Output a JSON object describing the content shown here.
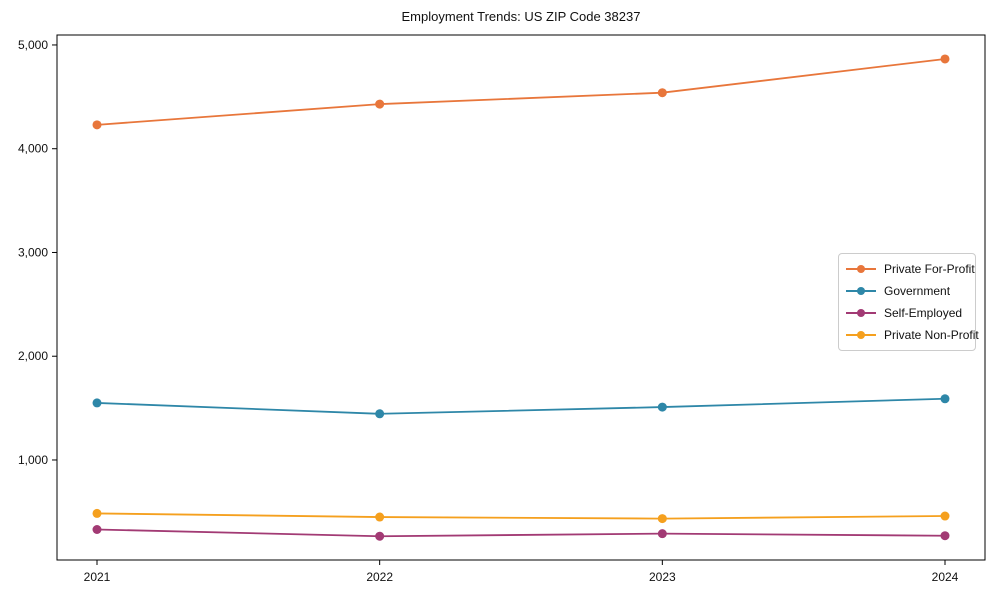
{
  "title": "Employment Trends: US ZIP Code 38237",
  "chart_data": {
    "type": "line",
    "title": "Employment Trends: US ZIP Code 38237",
    "xlabel": "",
    "ylabel": "",
    "x": [
      2021,
      2022,
      2023,
      2024
    ],
    "x_tick_labels": [
      "2021",
      "2022",
      "2023",
      "2024"
    ],
    "y_ticks": [
      1000,
      2000,
      3000,
      4000,
      5000
    ],
    "y_tick_labels": [
      "1,000",
      "2,000",
      "3,000",
      "4,000",
      "5,000"
    ],
    "ylim": [
      36,
      5096
    ],
    "grid": false,
    "legend_position": "center-right",
    "series": [
      {
        "name": "Private For-Profit",
        "color": "#E8763B",
        "values": [
          4230,
          4430,
          4540,
          4865
        ]
      },
      {
        "name": "Government",
        "color": "#2E87A8",
        "values": [
          1550,
          1445,
          1510,
          1590
        ]
      },
      {
        "name": "Self-Employed",
        "color": "#A23A74",
        "values": [
          330,
          265,
          290,
          270
        ]
      },
      {
        "name": "Private Non-Profit",
        "color": "#F5A01E",
        "values": [
          485,
          450,
          435,
          460
        ]
      }
    ]
  }
}
